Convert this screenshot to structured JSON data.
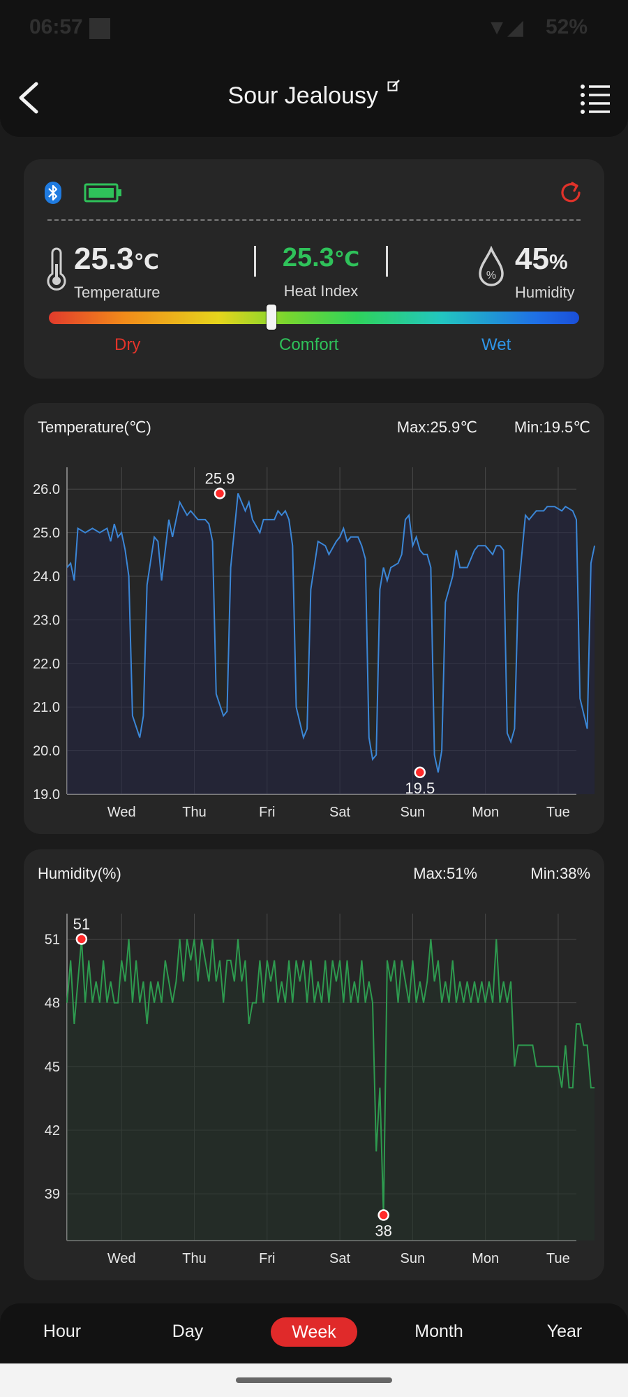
{
  "status_bar": {
    "time": "06:57",
    "battery": "52%"
  },
  "header": {
    "title": "Sour Jealousy"
  },
  "current": {
    "temperature": "25.3",
    "temperature_unit": "℃",
    "temperature_label": "Temperature",
    "heat_index": "25.3",
    "heat_index_unit": "℃",
    "heat_index_label": "Heat Index",
    "humidity": "45",
    "humidity_unit": "%",
    "humidity_label": "Humidity",
    "comfort_level": 0.42,
    "scale_labels": {
      "dry": "Dry",
      "comfort": "Comfort",
      "wet": "Wet"
    },
    "colors": {
      "dry": "#e2342a",
      "comfort": "#2fc25a",
      "wet": "#2f95e6",
      "accent": "#e02a2a"
    }
  },
  "icons": [
    "back-arrow-icon",
    "edit-icon",
    "menu-list-icon",
    "bluetooth-icon",
    "battery-icon",
    "refresh-icon",
    "thermometer-icon",
    "humidity-drop-icon"
  ],
  "tabs": [
    {
      "label": "Hour",
      "active": false
    },
    {
      "label": "Day",
      "active": false
    },
    {
      "label": "Week",
      "active": true
    },
    {
      "label": "Month",
      "active": false
    },
    {
      "label": "Year",
      "active": false
    }
  ],
  "chart_data": [
    {
      "type": "line",
      "title": "Temperature(℃)",
      "max_label": "Max:25.9℃",
      "min_label": "Min:19.5℃",
      "color": "#3b86d6",
      "x_ticks": [
        "Wed",
        "Thu",
        "Fri",
        "Sat",
        "Sun",
        "Mon",
        "Tue"
      ],
      "y_ticks": [
        "26.0",
        "25.0",
        "24.0",
        "23.0",
        "22.0",
        "21.0",
        "20.0",
        "19.0"
      ],
      "ylim": [
        19.0,
        26.5
      ],
      "xlim": [
        0,
        7
      ],
      "max_marker": {
        "x": 2.1,
        "y": 25.9,
        "label": "25.9"
      },
      "min_marker": {
        "x": 4.85,
        "y": 19.5,
        "label": "19.5"
      },
      "points": [
        [
          0,
          24.2
        ],
        [
          0.05,
          24.3
        ],
        [
          0.1,
          23.9
        ],
        [
          0.15,
          25.1
        ],
        [
          0.25,
          25.0
        ],
        [
          0.35,
          25.1
        ],
        [
          0.45,
          25.0
        ],
        [
          0.55,
          25.1
        ],
        [
          0.6,
          24.8
        ],
        [
          0.65,
          25.2
        ],
        [
          0.7,
          24.9
        ],
        [
          0.75,
          25.0
        ],
        [
          0.8,
          24.6
        ],
        [
          0.85,
          24.0
        ],
        [
          0.9,
          20.8
        ],
        [
          1.0,
          20.3
        ],
        [
          1.05,
          20.8
        ],
        [
          1.1,
          23.8
        ],
        [
          1.2,
          24.9
        ],
        [
          1.25,
          24.8
        ],
        [
          1.3,
          23.9
        ],
        [
          1.4,
          25.3
        ],
        [
          1.45,
          24.9
        ],
        [
          1.55,
          25.7
        ],
        [
          1.65,
          25.4
        ],
        [
          1.7,
          25.5
        ],
        [
          1.8,
          25.3
        ],
        [
          1.9,
          25.3
        ],
        [
          1.95,
          25.2
        ],
        [
          2.0,
          24.8
        ],
        [
          2.05,
          21.3
        ],
        [
          2.15,
          20.8
        ],
        [
          2.2,
          20.9
        ],
        [
          2.25,
          24.2
        ],
        [
          2.35,
          25.9
        ],
        [
          2.45,
          25.5
        ],
        [
          2.5,
          25.7
        ],
        [
          2.55,
          25.3
        ],
        [
          2.65,
          25.0
        ],
        [
          2.7,
          25.3
        ],
        [
          2.85,
          25.3
        ],
        [
          2.9,
          25.5
        ],
        [
          2.95,
          25.4
        ],
        [
          3.0,
          25.5
        ],
        [
          3.05,
          25.3
        ],
        [
          3.1,
          24.7
        ],
        [
          3.15,
          21.0
        ],
        [
          3.25,
          20.3
        ],
        [
          3.3,
          20.5
        ],
        [
          3.35,
          23.7
        ],
        [
          3.45,
          24.8
        ],
        [
          3.55,
          24.7
        ],
        [
          3.6,
          24.5
        ],
        [
          3.7,
          24.8
        ],
        [
          3.75,
          24.9
        ],
        [
          3.8,
          25.1
        ],
        [
          3.85,
          24.8
        ],
        [
          3.9,
          24.9
        ],
        [
          4.0,
          24.9
        ],
        [
          4.05,
          24.7
        ],
        [
          4.1,
          24.4
        ],
        [
          4.15,
          20.3
        ],
        [
          4.2,
          19.8
        ],
        [
          4.25,
          19.9
        ],
        [
          4.3,
          23.7
        ],
        [
          4.35,
          24.2
        ],
        [
          4.4,
          23.9
        ],
        [
          4.45,
          24.2
        ],
        [
          4.55,
          24.3
        ],
        [
          4.6,
          24.5
        ],
        [
          4.65,
          25.3
        ],
        [
          4.7,
          25.4
        ],
        [
          4.75,
          24.7
        ],
        [
          4.8,
          24.9
        ],
        [
          4.85,
          24.6
        ],
        [
          4.9,
          24.5
        ],
        [
          4.95,
          24.5
        ],
        [
          5.0,
          24.2
        ],
        [
          5.05,
          19.9
        ],
        [
          5.1,
          19.5
        ],
        [
          5.15,
          20.0
        ],
        [
          5.2,
          23.4
        ],
        [
          5.3,
          24.0
        ],
        [
          5.35,
          24.6
        ],
        [
          5.4,
          24.2
        ],
        [
          5.5,
          24.2
        ],
        [
          5.6,
          24.6
        ],
        [
          5.65,
          24.7
        ],
        [
          5.75,
          24.7
        ],
        [
          5.85,
          24.5
        ],
        [
          5.9,
          24.7
        ],
        [
          5.95,
          24.7
        ],
        [
          6.0,
          24.6
        ],
        [
          6.05,
          20.4
        ],
        [
          6.1,
          20.2
        ],
        [
          6.15,
          20.5
        ],
        [
          6.2,
          23.6
        ],
        [
          6.3,
          25.4
        ],
        [
          6.35,
          25.3
        ],
        [
          6.45,
          25.5
        ],
        [
          6.55,
          25.5
        ],
        [
          6.6,
          25.6
        ],
        [
          6.7,
          25.6
        ],
        [
          6.8,
          25.5
        ],
        [
          6.85,
          25.6
        ],
        [
          6.95,
          25.5
        ],
        [
          7.0,
          25.3
        ],
        [
          7.05,
          21.2
        ],
        [
          7.15,
          20.5
        ],
        [
          7.2,
          24.3
        ],
        [
          7.25,
          24.7
        ]
      ]
    },
    {
      "type": "line",
      "title": "Humidity(%)",
      "max_label": "Max:51%",
      "min_label": "Min:38%",
      "color": "#2e9a4f",
      "x_ticks": [
        "Wed",
        "Thu",
        "Fri",
        "Sat",
        "Sun",
        "Mon",
        "Tue"
      ],
      "y_ticks": [
        "51",
        "48",
        "45",
        "42",
        "39"
      ],
      "ylim": [
        36.8,
        52.2
      ],
      "xlim": [
        0,
        7
      ],
      "max_marker": {
        "x": 0.2,
        "y": 51,
        "label": "51"
      },
      "min_marker": {
        "x": 4.35,
        "y": 38,
        "label": "38"
      },
      "points": [
        [
          0,
          48
        ],
        [
          0.05,
          50
        ],
        [
          0.1,
          47
        ],
        [
          0.15,
          49
        ],
        [
          0.2,
          51
        ],
        [
          0.25,
          48
        ],
        [
          0.3,
          50
        ],
        [
          0.35,
          48
        ],
        [
          0.4,
          49
        ],
        [
          0.45,
          48
        ],
        [
          0.5,
          50
        ],
        [
          0.55,
          48
        ],
        [
          0.6,
          49
        ],
        [
          0.65,
          48
        ],
        [
          0.7,
          48
        ],
        [
          0.75,
          50
        ],
        [
          0.8,
          49
        ],
        [
          0.85,
          51
        ],
        [
          0.9,
          48
        ],
        [
          0.95,
          50
        ],
        [
          1.0,
          48
        ],
        [
          1.05,
          49
        ],
        [
          1.1,
          47
        ],
        [
          1.15,
          49
        ],
        [
          1.2,
          48
        ],
        [
          1.25,
          49
        ],
        [
          1.3,
          48
        ],
        [
          1.35,
          50
        ],
        [
          1.4,
          49
        ],
        [
          1.45,
          48
        ],
        [
          1.5,
          49
        ],
        [
          1.55,
          51
        ],
        [
          1.6,
          49
        ],
        [
          1.65,
          51
        ],
        [
          1.7,
          50
        ],
        [
          1.75,
          51
        ],
        [
          1.8,
          49
        ],
        [
          1.85,
          51
        ],
        [
          1.9,
          50
        ],
        [
          1.95,
          49
        ],
        [
          2.0,
          51
        ],
        [
          2.05,
          49
        ],
        [
          2.1,
          50
        ],
        [
          2.15,
          48
        ],
        [
          2.2,
          50
        ],
        [
          2.25,
          50
        ],
        [
          2.3,
          49
        ],
        [
          2.35,
          51
        ],
        [
          2.4,
          49
        ],
        [
          2.45,
          50
        ],
        [
          2.5,
          47
        ],
        [
          2.55,
          48
        ],
        [
          2.6,
          48
        ],
        [
          2.65,
          50
        ],
        [
          2.7,
          48
        ],
        [
          2.75,
          50
        ],
        [
          2.8,
          49
        ],
        [
          2.85,
          50
        ],
        [
          2.9,
          48
        ],
        [
          2.95,
          49
        ],
        [
          3.0,
          48
        ],
        [
          3.05,
          50
        ],
        [
          3.1,
          48
        ],
        [
          3.15,
          50
        ],
        [
          3.2,
          49
        ],
        [
          3.25,
          50
        ],
        [
          3.3,
          48
        ],
        [
          3.35,
          50
        ],
        [
          3.4,
          48
        ],
        [
          3.45,
          49
        ],
        [
          3.5,
          48
        ],
        [
          3.55,
          50
        ],
        [
          3.6,
          48
        ],
        [
          3.65,
          50
        ],
        [
          3.7,
          49
        ],
        [
          3.75,
          50
        ],
        [
          3.8,
          48
        ],
        [
          3.85,
          50
        ],
        [
          3.9,
          48
        ],
        [
          3.95,
          49
        ],
        [
          4.0,
          48
        ],
        [
          4.05,
          50
        ],
        [
          4.1,
          48
        ],
        [
          4.15,
          49
        ],
        [
          4.2,
          48
        ],
        [
          4.25,
          41
        ],
        [
          4.3,
          44
        ],
        [
          4.35,
          38
        ],
        [
          4.4,
          50
        ],
        [
          4.45,
          49
        ],
        [
          4.5,
          50
        ],
        [
          4.55,
          48
        ],
        [
          4.6,
          50
        ],
        [
          4.65,
          49
        ],
        [
          4.7,
          48
        ],
        [
          4.75,
          50
        ],
        [
          4.8,
          48
        ],
        [
          4.85,
          49
        ],
        [
          4.9,
          48
        ],
        [
          4.95,
          49
        ],
        [
          5.0,
          51
        ],
        [
          5.05,
          49
        ],
        [
          5.1,
          50
        ],
        [
          5.15,
          48
        ],
        [
          5.2,
          49
        ],
        [
          5.25,
          48
        ],
        [
          5.3,
          50
        ],
        [
          5.35,
          48
        ],
        [
          5.4,
          49
        ],
        [
          5.45,
          48
        ],
        [
          5.5,
          49
        ],
        [
          5.55,
          48
        ],
        [
          5.6,
          49
        ],
        [
          5.65,
          48
        ],
        [
          5.7,
          49
        ],
        [
          5.75,
          48
        ],
        [
          5.8,
          49
        ],
        [
          5.85,
          48
        ],
        [
          5.9,
          51
        ],
        [
          5.95,
          48
        ],
        [
          6.0,
          49
        ],
        [
          6.05,
          48
        ],
        [
          6.1,
          49
        ],
        [
          6.15,
          45
        ],
        [
          6.2,
          46
        ],
        [
          6.3,
          46
        ],
        [
          6.4,
          46
        ],
        [
          6.45,
          45
        ],
        [
          6.55,
          45
        ],
        [
          6.65,
          45
        ],
        [
          6.75,
          45
        ],
        [
          6.8,
          44
        ],
        [
          6.85,
          46
        ],
        [
          6.9,
          44
        ],
        [
          6.95,
          44
        ],
        [
          7.0,
          47
        ],
        [
          7.05,
          47
        ],
        [
          7.1,
          46
        ],
        [
          7.15,
          46
        ],
        [
          7.2,
          44
        ],
        [
          7.25,
          44
        ]
      ]
    }
  ]
}
